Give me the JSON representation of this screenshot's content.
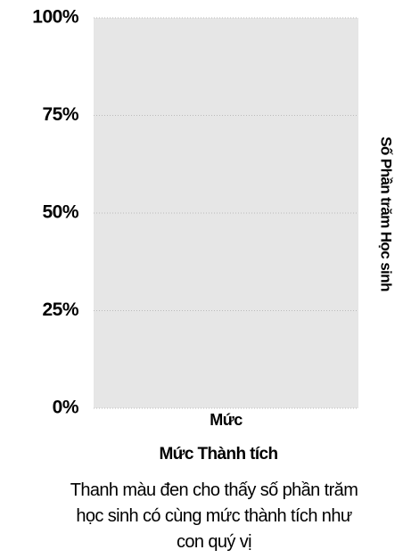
{
  "chart_data": {
    "type": "bar",
    "categories": [
      "Mức"
    ],
    "values": [
      null
    ],
    "color": "#000000",
    "xlabel": "Mức Thành tích",
    "ylabel": "Số Phần trăm Học sinh",
    "caption": "Thanh màu đen cho thấy số phần trăm học sinh có cùng mức thành tích như con quý vị",
    "ylim": [
      0,
      100
    ],
    "yticks": [
      {
        "value": 0,
        "label": "0%"
      },
      {
        "value": 25,
        "label": "25%"
      },
      {
        "value": 50,
        "label": "50%"
      },
      {
        "value": 75,
        "label": "75%"
      },
      {
        "value": 100,
        "label": "100%"
      }
    ],
    "grid": true
  }
}
